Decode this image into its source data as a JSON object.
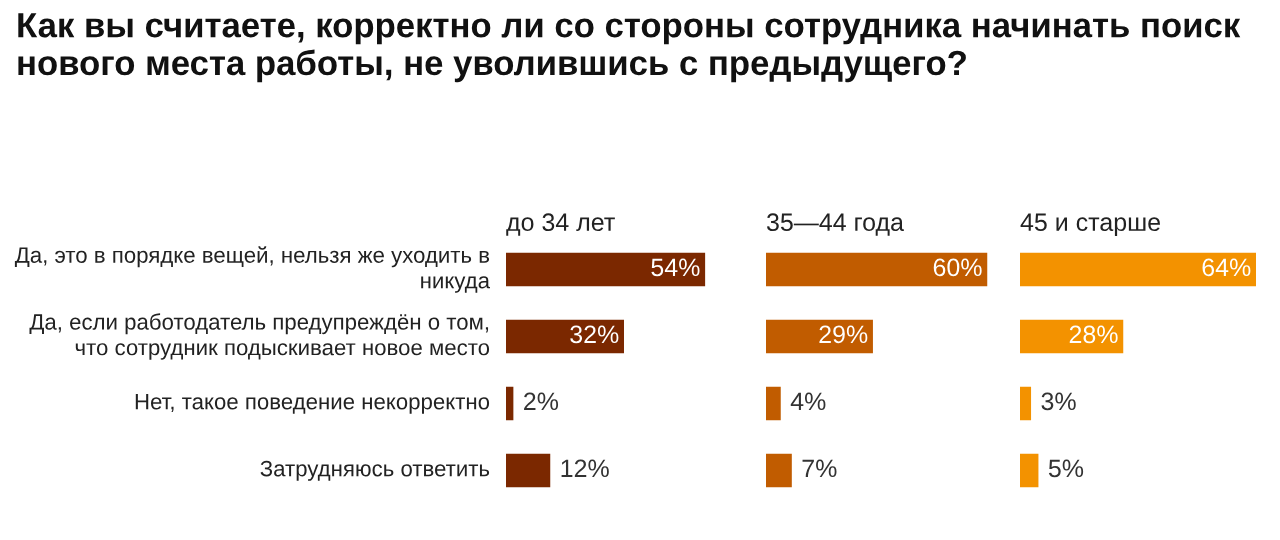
{
  "chart_data": [
    {
      "type": "bar",
      "orientation": "horizontal",
      "title": "до 34 лет",
      "categories": [
        "Да, это в порядке вещей, нельзя же уходить в никуда",
        "Да, если работодатель предупреждён о том, что сотрудник подыскивает новое место",
        "Нет, такое поведение некорректно",
        "Затрудняюсь ответить"
      ],
      "values": [
        54,
        32,
        2,
        12
      ],
      "color": "#7b2800",
      "data_labels": true,
      "value_labels": [
        "54%",
        "32%",
        "2%",
        "12%"
      ],
      "annotations": [
        "Как вы считаете, корректно ли со стороны сотрудника начинать поиск нового места работы, не уволившись с предыдущего?"
      ]
    },
    {
      "type": "bar",
      "orientation": "horizontal",
      "title": "35—44 года",
      "categories": [
        null,
        null,
        null,
        null
      ],
      "values": [
        60,
        29,
        4,
        7
      ],
      "color": "#c15c00",
      "data_labels": true,
      "value_labels": [
        "60%",
        "29%",
        "4%",
        "7%"
      ]
    },
    {
      "type": "bar",
      "orientation": "horizontal",
      "title": "45 и старше",
      "categories": [
        null,
        null,
        null,
        null
      ],
      "values": [
        64,
        28,
        3,
        5
      ],
      "color": "#f39200",
      "data_labels": true,
      "value_labels": [
        "64%",
        "28%",
        "3%",
        "5%"
      ]
    }
  ]
}
